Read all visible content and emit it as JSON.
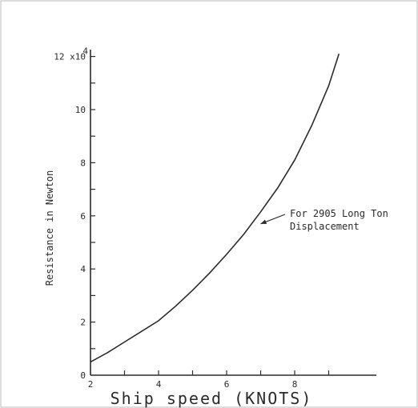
{
  "chart_data": {
    "type": "line",
    "title": "",
    "xlabel": "Ship speed (KNOTS)",
    "ylabel": "Resistance in Newton",
    "xlim": [
      2,
      9.5
    ],
    "ylim": [
      0,
      12
    ],
    "y_multiplier": "x10^4",
    "x_ticks": [
      "2",
      "4",
      "6",
      "8"
    ],
    "y_ticks": [
      "0",
      "2",
      "4",
      "6",
      "8",
      "10",
      "12 x10"
    ],
    "y_top_exponent": "4",
    "grid": false,
    "legend": "none",
    "series": [
      {
        "x": [
          2.0,
          2.5,
          3.0,
          3.5,
          4.0,
          4.5,
          5.0,
          5.5,
          6.0,
          6.5,
          7.0,
          7.5,
          8.0,
          8.5,
          9.0,
          9.3
        ],
        "y": [
          0.5,
          0.85,
          1.25,
          1.65,
          2.05,
          2.6,
          3.2,
          3.85,
          4.55,
          5.3,
          6.15,
          7.05,
          8.1,
          9.4,
          10.9,
          12.1
        ]
      }
    ],
    "annotations": [
      {
        "line1": "For 2905 Long Ton",
        "line2": "Displacement",
        "x": 7.0,
        "y": 5.7
      }
    ],
    "colors": {
      "curve": "#2b2b2b",
      "axes": "#2b2b2b",
      "text": "#2a2a2a",
      "background": "#ffffff"
    }
  }
}
